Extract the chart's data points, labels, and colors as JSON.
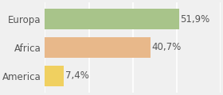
{
  "categories": [
    "Europa",
    "Africa",
    "America"
  ],
  "values": [
    51.9,
    40.7,
    7.4
  ],
  "labels": [
    "51,9%",
    "40,7%",
    "7,4%"
  ],
  "bar_colors": [
    "#a8c48a",
    "#e8b88a",
    "#f0d060"
  ],
  "background_color": "#f0f0f0",
  "xlim": [
    0,
    68
  ],
  "bar_height": 0.72,
  "label_fontsize": 8.5,
  "ytick_fontsize": 8.5
}
